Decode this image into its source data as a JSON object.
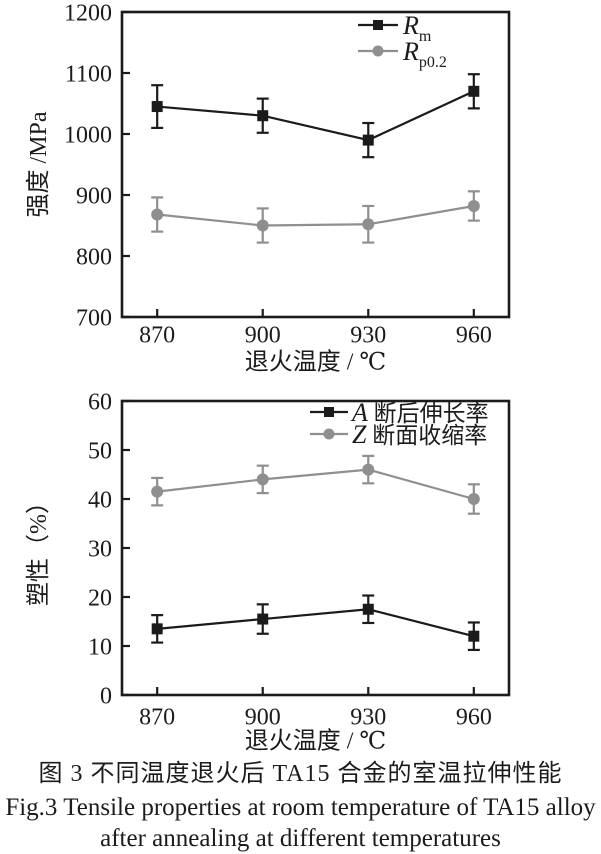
{
  "figure": {
    "caption_zh": "图 3  不同温度退火后 TA15 合金的室温拉伸性能",
    "caption_en_line1": "Fig.3  Tensile properties at room temperature of TA15 alloy",
    "caption_en_line2": "after annealing at different temperatures"
  },
  "colors": {
    "ink": "#1b1b1b",
    "gray_series": "#8f8f8f"
  },
  "chart_data": [
    {
      "type": "line",
      "title": "",
      "xlabel": "退火温度 / ℃",
      "ylabel": "强度 /MPa",
      "x": [
        870,
        900,
        930,
        960
      ],
      "xticks": [
        870,
        900,
        930,
        960
      ],
      "yticks": [
        700,
        800,
        900,
        1000,
        1100,
        1200
      ],
      "xlim": [
        860,
        970
      ],
      "ylim": [
        700,
        1200
      ],
      "grid": false,
      "legend_position": "top-right",
      "series": [
        {
          "name": "Rm",
          "legend_main": "R",
          "legend_sub": "m",
          "legend_text": "",
          "marker": "square",
          "color": "#1b1b1b",
          "values": [
            1045,
            1030,
            990,
            1070
          ],
          "errors": [
            35,
            28,
            28,
            28
          ]
        },
        {
          "name": "Rp02",
          "legend_main": "R",
          "legend_sub": "p0.2",
          "legend_text": "",
          "marker": "circle",
          "color": "#8f8f8f",
          "values": [
            868,
            850,
            852,
            882
          ],
          "errors": [
            28,
            28,
            30,
            24
          ]
        }
      ]
    },
    {
      "type": "line",
      "title": "",
      "xlabel": "退火温度 / ℃",
      "ylabel": "塑性（%）",
      "x": [
        870,
        900,
        930,
        960
      ],
      "xticks": [
        870,
        900,
        930,
        960
      ],
      "yticks": [
        0,
        10,
        20,
        30,
        40,
        50,
        60
      ],
      "xlim": [
        860,
        970
      ],
      "ylim": [
        0,
        60
      ],
      "grid": false,
      "legend_position": "top-right",
      "series": [
        {
          "name": "A",
          "legend_main": "A",
          "legend_sub": "",
          "legend_text": " 断后伸长率",
          "marker": "square",
          "color": "#1b1b1b",
          "values": [
            13.5,
            15.5,
            17.5,
            12
          ],
          "errors": [
            2.8,
            3,
            2.8,
            2.8
          ]
        },
        {
          "name": "Z",
          "legend_main": "Z",
          "legend_sub": "",
          "legend_text": " 断面收缩率",
          "marker": "circle",
          "color": "#8f8f8f",
          "values": [
            41.5,
            44,
            46,
            40
          ],
          "errors": [
            2.8,
            2.8,
            2.8,
            3
          ]
        }
      ]
    }
  ]
}
